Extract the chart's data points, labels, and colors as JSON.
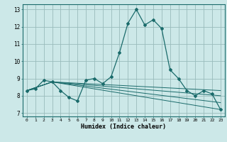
{
  "title": "",
  "xlabel": "Humidex (Indice chaleur)",
  "bg_color": "#cce8e8",
  "grid_color": "#99bbbb",
  "line_color": "#1a6b6b",
  "xlim": [
    -0.5,
    23.5
  ],
  "ylim": [
    6.8,
    13.3
  ],
  "xticks": [
    0,
    1,
    2,
    3,
    4,
    5,
    6,
    7,
    8,
    9,
    10,
    11,
    12,
    13,
    14,
    15,
    16,
    17,
    18,
    19,
    20,
    21,
    22,
    23
  ],
  "yticks": [
    7,
    8,
    9,
    10,
    11,
    12,
    13
  ],
  "main_x": [
    0,
    1,
    2,
    3,
    4,
    5,
    6,
    7,
    8,
    9,
    10,
    11,
    12,
    13,
    14,
    15,
    16,
    17,
    18,
    19,
    20,
    21,
    22,
    23
  ],
  "main_y": [
    8.3,
    8.4,
    8.9,
    8.8,
    8.3,
    7.9,
    7.7,
    8.9,
    9.0,
    8.7,
    9.1,
    10.5,
    12.2,
    13.0,
    12.1,
    12.4,
    11.9,
    9.5,
    9.0,
    8.3,
    8.0,
    8.3,
    8.1,
    7.2
  ],
  "fan_lines": [
    {
      "x": [
        0,
        3,
        23
      ],
      "y": [
        8.3,
        8.8,
        7.2
      ]
    },
    {
      "x": [
        0,
        3,
        23
      ],
      "y": [
        8.3,
        8.8,
        7.6
      ]
    },
    {
      "x": [
        0,
        3,
        23
      ],
      "y": [
        8.3,
        8.8,
        8.0
      ]
    },
    {
      "x": [
        0,
        3,
        23
      ],
      "y": [
        8.3,
        8.8,
        8.3
      ]
    }
  ]
}
